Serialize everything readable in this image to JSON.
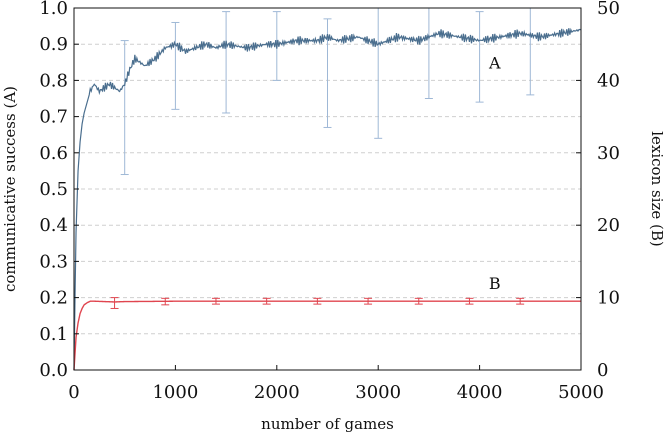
{
  "chart_data": {
    "type": "line",
    "xlabel": "number of games",
    "ylabel_left": "communicative success (A)",
    "ylabel_right": "lexicon size (B)",
    "xlim": [
      0,
      5000
    ],
    "ylim_left": [
      0,
      1.0
    ],
    "ylim_right": [
      0,
      50
    ],
    "x_ticks": [
      "0",
      "1000",
      "2000",
      "3000",
      "4000",
      "5000"
    ],
    "y_ticks_left": [
      "0.0",
      "0.1",
      "0.2",
      "0.3",
      "0.4",
      "0.5",
      "0.6",
      "0.7",
      "0.8",
      "0.9",
      "1.0"
    ],
    "y_ticks_right": [
      "0",
      "10",
      "20",
      "30",
      "40",
      "50"
    ],
    "grid": "horizontal dashed",
    "series": [
      {
        "name": "A",
        "axis": "left",
        "color": "#4a6e8e",
        "x": [
          0,
          10,
          20,
          40,
          60,
          80,
          100,
          130,
          160,
          200,
          250,
          300,
          350,
          400,
          450,
          500,
          550,
          600,
          700,
          800,
          900,
          1000,
          1100,
          1200,
          1300,
          1400,
          1500,
          1700,
          1900,
          2000,
          2200,
          2400,
          2500,
          2600,
          2800,
          3000,
          3200,
          3400,
          3600,
          3800,
          4000,
          4200,
          4400,
          4600,
          4800,
          5000
        ],
        "y": [
          0.0,
          0.2,
          0.38,
          0.55,
          0.63,
          0.68,
          0.71,
          0.74,
          0.77,
          0.79,
          0.77,
          0.78,
          0.79,
          0.78,
          0.77,
          0.79,
          0.83,
          0.86,
          0.84,
          0.86,
          0.89,
          0.9,
          0.88,
          0.89,
          0.9,
          0.89,
          0.9,
          0.89,
          0.9,
          0.9,
          0.91,
          0.91,
          0.92,
          0.91,
          0.92,
          0.9,
          0.92,
          0.91,
          0.93,
          0.92,
          0.91,
          0.92,
          0.93,
          0.92,
          0.93,
          0.94
        ],
        "error_bars": [
          {
            "x": 500,
            "low": 0.54,
            "high": 0.91
          },
          {
            "x": 1000,
            "low": 0.72,
            "high": 0.96
          },
          {
            "x": 1500,
            "low": 0.71,
            "high": 0.99
          },
          {
            "x": 2000,
            "low": 0.8,
            "high": 0.99
          },
          {
            "x": 2500,
            "low": 0.67,
            "high": 0.97
          },
          {
            "x": 3000,
            "low": 0.64,
            "high": 1.0
          },
          {
            "x": 3500,
            "low": 0.75,
            "high": 1.0
          },
          {
            "x": 4000,
            "low": 0.74,
            "high": 0.99
          },
          {
            "x": 4500,
            "low": 0.76,
            "high": 1.0
          }
        ]
      },
      {
        "name": "B",
        "axis": "right",
        "color": "#e0454f",
        "x": [
          0,
          20,
          40,
          60,
          80,
          100,
          130,
          160,
          200,
          300,
          400,
          500,
          1000,
          2000,
          3000,
          4000,
          5000
        ],
        "y": [
          0,
          4.5,
          6.5,
          7.8,
          8.5,
          9.0,
          9.3,
          9.5,
          9.5,
          9.45,
          9.4,
          9.45,
          9.5,
          9.5,
          9.5,
          9.5,
          9.5
        ],
        "error_bars": [
          {
            "x": 400,
            "low": 8.5,
            "high": 10.0
          },
          {
            "x": 900,
            "low": 9.0,
            "high": 9.9
          },
          {
            "x": 1400,
            "low": 9.1,
            "high": 9.9
          },
          {
            "x": 1900,
            "low": 9.1,
            "high": 9.9
          },
          {
            "x": 2400,
            "low": 9.1,
            "high": 9.9
          },
          {
            "x": 2900,
            "low": 9.1,
            "high": 9.9
          },
          {
            "x": 3400,
            "low": 9.1,
            "high": 9.9
          },
          {
            "x": 3900,
            "low": 9.1,
            "high": 9.9
          },
          {
            "x": 4400,
            "low": 9.1,
            "high": 9.9
          }
        ]
      }
    ],
    "annotations": [
      {
        "text": "A",
        "x": 4150,
        "y_left": 0.85
      },
      {
        "text": "B",
        "x": 4150,
        "y_left": 0.24
      }
    ]
  }
}
